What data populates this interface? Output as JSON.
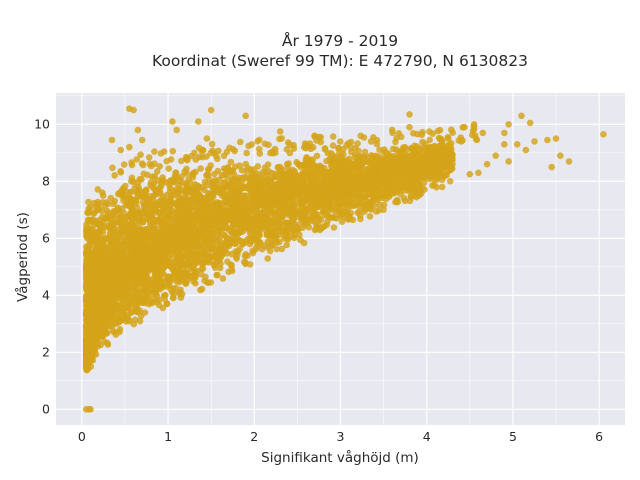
{
  "chart_data": {
    "type": "scatter",
    "title_lines": [
      "År 1979 - 2019",
      "Koordinat (Sweref 99 TM): E 472790, N 6130823"
    ],
    "xlabel": "Signifikant våghöjd (m)",
    "ylabel": "Vågperiod (s)",
    "xlim": [
      -0.3,
      6.3
    ],
    "ylim": [
      -0.55,
      11.1
    ],
    "xticks": [
      0,
      1,
      2,
      3,
      4,
      5,
      6
    ],
    "yticks": [
      0,
      2,
      4,
      6,
      8,
      10
    ],
    "grid": true,
    "legend": "none",
    "colors": {
      "marker": "#d4a418",
      "plot_bg": "#e8e8f0",
      "grid": "#ffffff"
    },
    "bands": {
      "x": [
        0.05,
        0.1,
        0.2,
        0.3,
        0.4,
        0.5,
        0.7,
        1.0,
        1.3,
        1.6,
        2.0,
        2.5,
        3.0,
        3.5,
        4.0,
        4.3
      ],
      "y_min": [
        1.1,
        1.3,
        1.8,
        2.2,
        2.5,
        2.7,
        3.0,
        3.5,
        4.0,
        4.4,
        5.0,
        5.7,
        6.3,
        6.9,
        7.5,
        8.0
      ],
      "y_max": [
        7.0,
        7.6,
        7.9,
        8.0,
        8.2,
        8.3,
        8.5,
        8.6,
        8.7,
        8.8,
        8.9,
        9.0,
        9.1,
        9.2,
        9.3,
        9.4
      ],
      "y_mid": [
        2.5,
        3.0,
        3.8,
        4.3,
        4.7,
        5.0,
        5.4,
        5.9,
        6.3,
        6.7,
        7.1,
        7.5,
        7.9,
        8.2,
        8.6,
        8.9
      ]
    },
    "points": [
      {
        "x": 0.05,
        "y": 0.0
      },
      {
        "x": 0.08,
        "y": 0.0
      },
      {
        "x": 0.1,
        "y": 0.0
      },
      {
        "x": 0.55,
        "y": 10.55
      },
      {
        "x": 0.6,
        "y": 10.5
      },
      {
        "x": 1.5,
        "y": 10.5
      },
      {
        "x": 1.9,
        "y": 10.3
      },
      {
        "x": 3.8,
        "y": 10.35
      },
      {
        "x": 1.35,
        "y": 10.1
      },
      {
        "x": 1.05,
        "y": 10.1
      },
      {
        "x": 0.65,
        "y": 9.8
      },
      {
        "x": 0.35,
        "y": 9.45
      },
      {
        "x": 0.55,
        "y": 9.2
      },
      {
        "x": 0.45,
        "y": 9.1
      },
      {
        "x": 0.7,
        "y": 9.45
      },
      {
        "x": 1.1,
        "y": 9.8
      },
      {
        "x": 1.45,
        "y": 9.5
      },
      {
        "x": 2.3,
        "y": 9.75
      },
      {
        "x": 2.7,
        "y": 9.6
      },
      {
        "x": 3.6,
        "y": 9.8
      },
      {
        "x": 3.8,
        "y": 9.9
      },
      {
        "x": 4.55,
        "y": 10.0
      },
      {
        "x": 4.65,
        "y": 9.7
      },
      {
        "x": 4.9,
        "y": 9.7
      },
      {
        "x": 4.95,
        "y": 10.0
      },
      {
        "x": 5.1,
        "y": 10.3
      },
      {
        "x": 5.2,
        "y": 10.05
      },
      {
        "x": 5.05,
        "y": 9.3
      },
      {
        "x": 5.25,
        "y": 9.4
      },
      {
        "x": 5.4,
        "y": 9.45
      },
      {
        "x": 5.5,
        "y": 9.5
      },
      {
        "x": 5.55,
        "y": 8.9
      },
      {
        "x": 5.65,
        "y": 8.7
      },
      {
        "x": 5.45,
        "y": 8.5
      },
      {
        "x": 6.05,
        "y": 9.65
      },
      {
        "x": 5.15,
        "y": 9.1
      },
      {
        "x": 4.95,
        "y": 8.7
      },
      {
        "x": 4.8,
        "y": 8.9
      },
      {
        "x": 4.7,
        "y": 8.6
      },
      {
        "x": 4.6,
        "y": 8.3
      },
      {
        "x": 4.5,
        "y": 8.25
      },
      {
        "x": 4.9,
        "y": 9.3
      },
      {
        "x": 4.25,
        "y": 9.5
      },
      {
        "x": 4.4,
        "y": 9.4
      },
      {
        "x": 3.65,
        "y": 7.3
      },
      {
        "x": 3.5,
        "y": 7.0
      },
      {
        "x": 3.2,
        "y": 6.9
      },
      {
        "x": 3.1,
        "y": 6.7
      }
    ]
  }
}
